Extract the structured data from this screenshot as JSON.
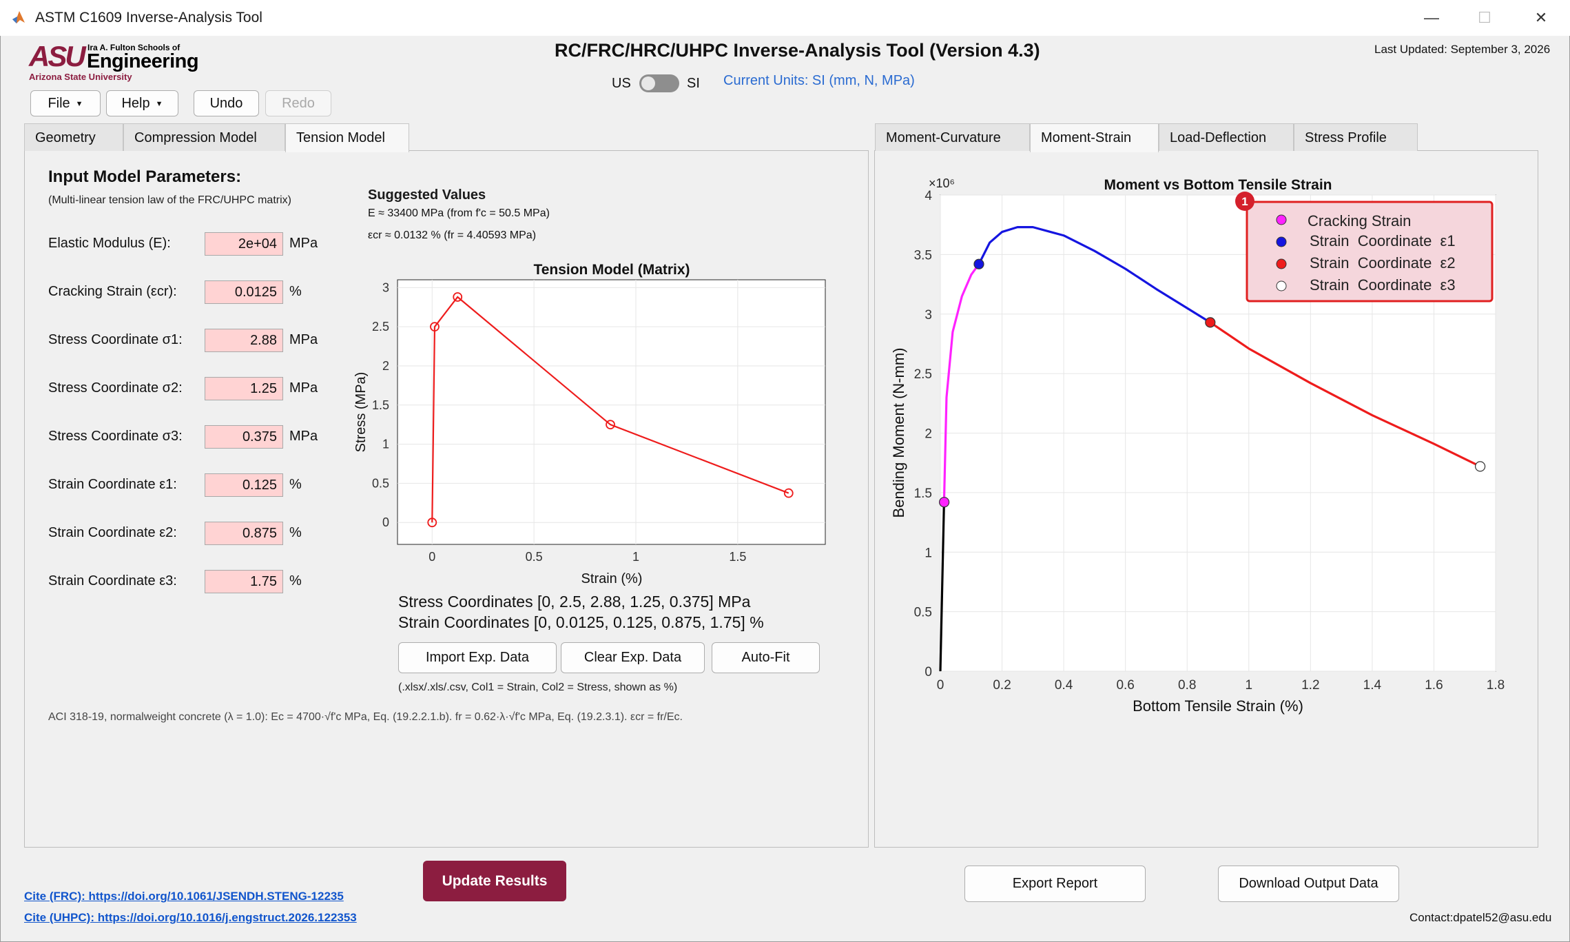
{
  "window": {
    "title": "ASTM C1609 Inverse-Analysis Tool",
    "minimize": "—",
    "maximize": "☐",
    "close": "✕"
  },
  "logo": {
    "mark": "ASU",
    "school": "Ira A. Fulton Schools of",
    "engineering": "Engineering",
    "university": "Arizona State University"
  },
  "header": {
    "title": "RC/FRC/HRC/UHPC Inverse-Analysis Tool (Version 4.3)",
    "last_updated": "Last Updated: September 3, 2026"
  },
  "units": {
    "left_label": "US",
    "right_label": "SI",
    "current": "Current Units: SI (mm, N, MPa)"
  },
  "toolbar": {
    "file": "File",
    "help": "Help",
    "undo": "Undo",
    "redo": "Redo"
  },
  "left_tabs": [
    "Geometry",
    "Compression Model",
    "Tension Model"
  ],
  "right_tabs": [
    "Moment-Curvature",
    "Moment-Strain",
    "Load-Deflection",
    "Stress Profile"
  ],
  "input": {
    "heading": "Input Model Parameters:",
    "subheading": "(Multi-linear tension law of the FRC/UHPC matrix)",
    "params": [
      {
        "label": "Elastic Modulus (E):",
        "value": "2e+04",
        "unit": "MPa"
      },
      {
        "label": "Cracking Strain (εcr):",
        "value": "0.0125",
        "unit": "%"
      },
      {
        "label": "Stress Coordinate σ1:",
        "value": "2.88",
        "unit": "MPa"
      },
      {
        "label": "Stress Coordinate σ2:",
        "value": "1.25",
        "unit": "MPa"
      },
      {
        "label": "Stress Coordinate σ3:",
        "value": "0.375",
        "unit": "MPa"
      },
      {
        "label": "Strain Coordinate ε1:",
        "value": "0.125",
        "unit": "%"
      },
      {
        "label": "Strain Coordinate ε2:",
        "value": "0.875",
        "unit": "%"
      },
      {
        "label": "Strain Coordinate ε3:",
        "value": "1.75",
        "unit": "%"
      }
    ]
  },
  "suggested": {
    "heading": "Suggested Values",
    "line1": "E ≈ 33400 MPa  (from f'c = 50.5 MPa)",
    "line2": "εcr ≈ 0.0132 %  (fr = 4.40593 MPa)"
  },
  "coordinates": {
    "stress": "Stress Coordinates [0, 2.5, 2.88, 1.25, 0.375] MPa",
    "strain": "Strain Coordinates [0, 0.0125, 0.125, 0.875, 1.75] %"
  },
  "exp_buttons": {
    "import": "Import Exp. Data",
    "clear": "Clear Exp. Data",
    "autofit": "Auto-Fit"
  },
  "hint": "(.xlsx/.xls/.csv, Col1 = Strain, Col2 = Stress, shown as %)",
  "aci_note": "ACI 318-19, normalweight concrete (λ = 1.0): Ec = 4700·√f'c MPa, Eq. (19.2.2.1.b). fr = 0.62·λ·√f'c MPa, Eq. (19.2.3.1). εcr = fr/Ec.",
  "bottom": {
    "update": "Update Results",
    "export": "Export Report",
    "download": "Download Output Data",
    "cite_frc": "Cite (FRC): https://doi.org/10.1061/JSENDH.STENG-12235",
    "cite_uhpc": "Cite (UHPC): https://doi.org/10.1016/j.engstruct.2026.122353",
    "contact": "Contact:dpatel52@asu.edu"
  },
  "colors": {
    "brand": "#8c1d40",
    "field_bg": "#ffd3d3",
    "link": "#1155cc",
    "units": "#2a6bd1"
  },
  "chart_data": [
    {
      "type": "line",
      "title": "Tension Model (Matrix)",
      "xlabel": "Strain (%)",
      "ylabel": "Stress (MPa)",
      "xlim": [
        -0.17,
        1.93
      ],
      "ylim": [
        -0.28,
        3.1
      ],
      "xticks": [
        0,
        0.5,
        1,
        1.5
      ],
      "yticks": [
        0,
        0.5,
        1,
        1.5,
        2,
        2.5,
        3
      ],
      "grid": true,
      "series": [
        {
          "x": [
            0,
            0.0125,
            0.125,
            0.875,
            1.75
          ],
          "y": [
            0,
            2.5,
            2.88,
            1.25,
            0.375
          ],
          "color": "#ee1c1c",
          "marker": "open-circle"
        }
      ]
    },
    {
      "type": "line",
      "title": "Moment vs Bottom Tensile Strain",
      "xlabel": "Bottom Tensile Strain (%)",
      "ylabel": "Bending Moment (N-mm)",
      "y_exponent": "×10⁶",
      "xlim": [
        0,
        1.8
      ],
      "ylim": [
        0,
        4
      ],
      "xticks": [
        0,
        0.2,
        0.4,
        0.6,
        0.8,
        1,
        1.2,
        1.4,
        1.6,
        1.8
      ],
      "yticks": [
        0,
        0.5,
        1,
        1.5,
        2,
        2.5,
        3,
        3.5,
        4
      ],
      "grid": true,
      "legend_position": "top-right",
      "legend_badge": "1",
      "segments": [
        {
          "color": "#000000",
          "x": [
            0,
            0.012
          ],
          "y": [
            0,
            1.42
          ]
        },
        {
          "color": "#ff22ff",
          "x": [
            0.012,
            0.02,
            0.04,
            0.07,
            0.1,
            0.125
          ],
          "y": [
            1.42,
            2.3,
            2.85,
            3.15,
            3.33,
            3.42
          ]
        },
        {
          "color": "#1515e0",
          "x": [
            0.125,
            0.16,
            0.2,
            0.25,
            0.3,
            0.4,
            0.5,
            0.6,
            0.7,
            0.8,
            0.875
          ],
          "y": [
            3.42,
            3.6,
            3.69,
            3.73,
            3.73,
            3.66,
            3.53,
            3.38,
            3.21,
            3.05,
            2.93
          ]
        },
        {
          "color": "#ee1c1c",
          "x": [
            0.875,
            1.0,
            1.2,
            1.4,
            1.6,
            1.75
          ],
          "y": [
            2.93,
            2.71,
            2.42,
            2.15,
            1.91,
            1.72
          ]
        }
      ],
      "markers": [
        {
          "name": "Cracking Strain",
          "x": 0.0125,
          "y": 1.42,
          "fill": "#ff22ff"
        },
        {
          "name": "Strain  Coordinate  ε1",
          "x": 0.125,
          "y": 3.42,
          "fill": "#1515e0"
        },
        {
          "name": "Strain  Coordinate  ε2",
          "x": 0.875,
          "y": 2.93,
          "fill": "#ee1c1c"
        },
        {
          "name": "Strain  Coordinate  ε3",
          "x": 1.75,
          "y": 1.72,
          "fill": "#ffffff"
        }
      ]
    }
  ]
}
